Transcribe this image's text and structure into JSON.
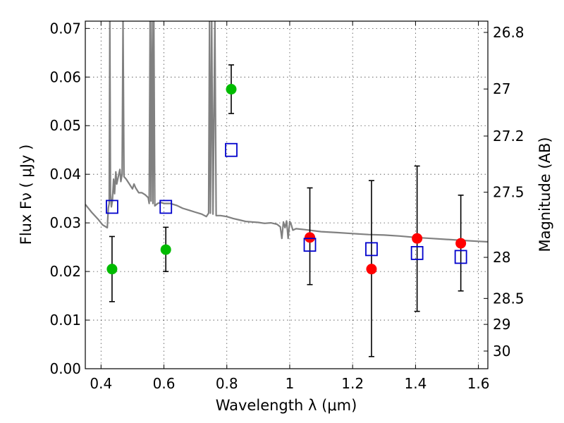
{
  "chart_data": {
    "type": "scatter",
    "xlabel": "Wavelength  λ (μm)",
    "ylabel": "Flux  Fν  ( μJy )",
    "ylabel_right": "Magnitude (AB)",
    "xlim": [
      0.35,
      1.63
    ],
    "ylim": [
      0.0,
      0.0715
    ],
    "x_ticks": [
      {
        "value": 0.4,
        "label": "0.4"
      },
      {
        "value": 0.6,
        "label": "0.6"
      },
      {
        "value": 0.8,
        "label": "0.8"
      },
      {
        "value": 1.0,
        "label": "1"
      },
      {
        "value": 1.2,
        "label": "1.2"
      },
      {
        "value": 1.4,
        "label": "1.4"
      },
      {
        "value": 1.6,
        "label": "1.6"
      }
    ],
    "y_ticks": [
      {
        "value": 0.0,
        "label": "0.00"
      },
      {
        "value": 0.01,
        "label": "0.01"
      },
      {
        "value": 0.02,
        "label": "0.02"
      },
      {
        "value": 0.03,
        "label": "0.03"
      },
      {
        "value": 0.04,
        "label": "0.04"
      },
      {
        "value": 0.05,
        "label": "0.05"
      },
      {
        "value": 0.06,
        "label": "0.06"
      },
      {
        "value": 0.07,
        "label": "0.07"
      }
    ],
    "mag_ticks": [
      {
        "mag": 26.8,
        "label": "26.8"
      },
      {
        "mag": 27.0,
        "label": "27"
      },
      {
        "mag": 27.2,
        "label": "27.2"
      },
      {
        "mag": 27.5,
        "label": "27.5"
      },
      {
        "mag": 28.0,
        "label": "28"
      },
      {
        "mag": 28.5,
        "label": "28.5"
      },
      {
        "mag": 29.0,
        "label": "29"
      },
      {
        "mag": 30.0,
        "label": "30"
      }
    ],
    "grid": true,
    "colors": {
      "spectrum": "#808080",
      "green_points": "#00bb00",
      "red_points": "#ff0000",
      "model_squares": "#0000cc",
      "error_bars": "#000000"
    },
    "series": [
      {
        "marker": "circle",
        "color": "green",
        "points": [
          {
            "x": 0.435,
            "y": 0.0205,
            "ylo": 0.0138,
            "yhi": 0.0272
          },
          {
            "x": 0.606,
            "y": 0.0245,
            "ylo": 0.02,
            "yhi": 0.0291
          },
          {
            "x": 0.814,
            "y": 0.0575,
            "ylo": 0.0525,
            "yhi": 0.0625
          }
        ]
      },
      {
        "marker": "circle",
        "color": "red",
        "points": [
          {
            "x": 1.064,
            "y": 0.027,
            "ylo": 0.0173,
            "yhi": 0.0372
          },
          {
            "x": 1.26,
            "y": 0.0205,
            "ylo": 0.0025,
            "yhi": 0.0387
          },
          {
            "x": 1.405,
            "y": 0.0268,
            "ylo": 0.0118,
            "yhi": 0.0417
          },
          {
            "x": 1.544,
            "y": 0.0258,
            "ylo": 0.016,
            "yhi": 0.0357
          }
        ]
      },
      {
        "marker": "open-square",
        "color": "blue",
        "points": [
          {
            "x": 0.435,
            "y": 0.0333
          },
          {
            "x": 0.606,
            "y": 0.0333
          },
          {
            "x": 0.814,
            "y": 0.045
          },
          {
            "x": 1.064,
            "y": 0.0255
          },
          {
            "x": 1.26,
            "y": 0.0246
          },
          {
            "x": 1.405,
            "y": 0.0238
          },
          {
            "x": 1.544,
            "y": 0.023
          }
        ]
      }
    ],
    "spectrum": [
      [
        0.35,
        0.0338
      ],
      [
        0.37,
        0.0322
      ],
      [
        0.39,
        0.0308
      ],
      [
        0.405,
        0.0296
      ],
      [
        0.42,
        0.029
      ],
      [
        0.423,
        0.033
      ],
      [
        0.426,
        0.034
      ],
      [
        0.428,
        0.0715
      ],
      [
        0.43,
        0.036
      ],
      [
        0.433,
        0.0333
      ],
      [
        0.436,
        0.0345
      ],
      [
        0.44,
        0.039
      ],
      [
        0.443,
        0.036
      ],
      [
        0.447,
        0.0405
      ],
      [
        0.45,
        0.038
      ],
      [
        0.455,
        0.0395
      ],
      [
        0.46,
        0.041
      ],
      [
        0.463,
        0.0385
      ],
      [
        0.467,
        0.04
      ],
      [
        0.47,
        0.0715
      ],
      [
        0.473,
        0.0395
      ],
      [
        0.48,
        0.039
      ],
      [
        0.49,
        0.038
      ],
      [
        0.5,
        0.037
      ],
      [
        0.505,
        0.038
      ],
      [
        0.51,
        0.0372
      ],
      [
        0.52,
        0.0362
      ],
      [
        0.53,
        0.0362
      ],
      [
        0.54,
        0.0358
      ],
      [
        0.55,
        0.0352
      ],
      [
        0.553,
        0.034
      ],
      [
        0.556,
        0.0715
      ],
      [
        0.559,
        0.0345
      ],
      [
        0.562,
        0.0715
      ],
      [
        0.565,
        0.034
      ],
      [
        0.568,
        0.0715
      ],
      [
        0.571,
        0.0335
      ],
      [
        0.58,
        0.034
      ],
      [
        0.59,
        0.0342
      ],
      [
        0.6,
        0.034
      ],
      [
        0.62,
        0.034
      ],
      [
        0.64,
        0.0336
      ],
      [
        0.66,
        0.033
      ],
      [
        0.68,
        0.0326
      ],
      [
        0.7,
        0.0322
      ],
      [
        0.72,
        0.0318
      ],
      [
        0.735,
        0.0313
      ],
      [
        0.742,
        0.032
      ],
      [
        0.745,
        0.0715
      ],
      [
        0.748,
        0.032
      ],
      [
        0.752,
        0.0715
      ],
      [
        0.756,
        0.0318
      ],
      [
        0.762,
        0.0715
      ],
      [
        0.766,
        0.0315
      ],
      [
        0.78,
        0.0315
      ],
      [
        0.8,
        0.0313
      ],
      [
        0.82,
        0.0309
      ],
      [
        0.84,
        0.0306
      ],
      [
        0.86,
        0.0303
      ],
      [
        0.88,
        0.0302
      ],
      [
        0.9,
        0.0301
      ],
      [
        0.92,
        0.0299
      ],
      [
        0.94,
        0.03
      ],
      [
        0.96,
        0.0297
      ],
      [
        0.97,
        0.0292
      ],
      [
        0.975,
        0.0268
      ],
      [
        0.98,
        0.0302
      ],
      [
        0.985,
        0.029
      ],
      [
        0.99,
        0.0304
      ],
      [
        0.995,
        0.0268
      ],
      [
        1.0,
        0.0303
      ],
      [
        1.005,
        0.0296
      ],
      [
        1.01,
        0.0285
      ],
      [
        1.02,
        0.0288
      ],
      [
        1.05,
        0.0286
      ],
      [
        1.1,
        0.0282
      ],
      [
        1.15,
        0.028
      ],
      [
        1.2,
        0.0278
      ],
      [
        1.25,
        0.0276
      ],
      [
        1.3,
        0.0275
      ],
      [
        1.35,
        0.0273
      ],
      [
        1.4,
        0.027
      ],
      [
        1.45,
        0.0268
      ],
      [
        1.5,
        0.0266
      ],
      [
        1.55,
        0.0264
      ],
      [
        1.6,
        0.0262
      ],
      [
        1.63,
        0.0261
      ]
    ]
  }
}
